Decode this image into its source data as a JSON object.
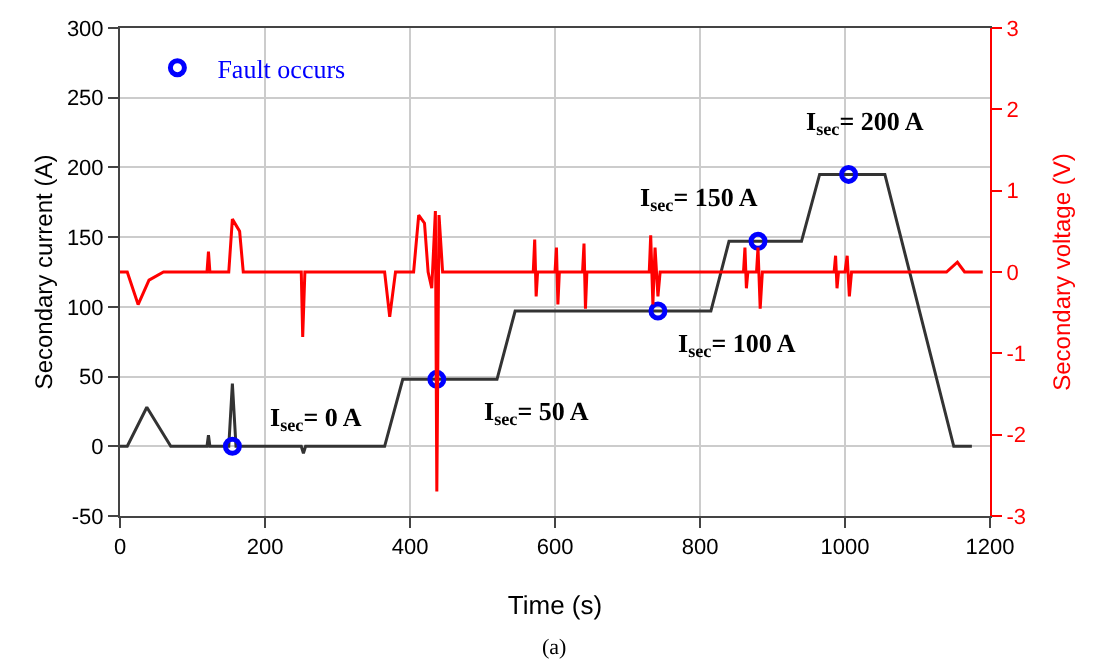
{
  "chart_data": {
    "type": "line",
    "xlabel": "Time (s)",
    "ylabel": "Secondary current (A)",
    "y2label": "Secondary voltage (V)",
    "xlim": [
      0,
      1200
    ],
    "xticks": [
      0,
      200,
      400,
      600,
      800,
      1000,
      1200
    ],
    "ylim": [
      -50,
      300
    ],
    "yticks": [
      -50,
      0,
      50,
      100,
      150,
      200,
      250,
      300
    ],
    "y2lim": [
      -3,
      3
    ],
    "y2ticks": [
      -3,
      -2,
      -1,
      0,
      1,
      2,
      3
    ],
    "grid": true,
    "legend": "top left",
    "line_style": "solid",
    "series": [
      {
        "color": "#333333",
        "x": [
          0,
          10,
          37,
          70,
          120,
          122,
          124,
          150,
          155,
          160,
          250,
          253,
          256,
          365,
          390,
          520,
          545,
          815,
          840,
          940,
          965,
          1055,
          1150,
          1175
        ],
        "values": [
          0,
          0,
          28,
          0,
          0,
          8,
          0,
          0,
          45,
          0,
          0,
          -5,
          0,
          0,
          48,
          48,
          97,
          97,
          147,
          147,
          195,
          195,
          0,
          0
        ]
      },
      {
        "axis": "y2",
        "color": "#ff0000",
        "x": [
          0,
          10,
          25,
          40,
          60,
          120,
          122,
          124,
          150,
          155,
          165,
          170,
          250,
          252,
          255,
          365,
          372,
          380,
          405,
          412,
          420,
          425,
          430,
          435,
          437,
          440,
          445,
          570,
          572,
          574,
          576,
          600,
          602,
          604,
          606,
          638,
          640,
          642,
          644,
          730,
          732,
          735,
          738,
          742,
          745,
          860,
          862,
          864,
          866,
          878,
          880,
          883,
          886,
          985,
          987,
          989,
          991,
          1000,
          1003,
          1006,
          1009,
          1140,
          1155,
          1165,
          1190
        ],
        "values": [
          0,
          0,
          -0.4,
          -0.1,
          0,
          0,
          0.25,
          0,
          0,
          0.65,
          0.5,
          0,
          0,
          -0.8,
          0,
          0,
          -0.55,
          0,
          0,
          0.7,
          0.6,
          0,
          -0.2,
          0.75,
          -2.7,
          0.7,
          0,
          0,
          0.4,
          -0.3,
          0,
          0,
          0.3,
          -0.4,
          0,
          0,
          0.35,
          -0.45,
          0,
          0,
          0.45,
          -0.4,
          0.3,
          -0.3,
          0,
          0,
          0.3,
          -0.2,
          0,
          0,
          0.3,
          -0.45,
          0,
          0,
          0.2,
          -0.2,
          0,
          0,
          0.2,
          -0.3,
          0,
          0,
          0.12,
          0,
          0
        ]
      },
      {
        "type": "scatter",
        "name": "Fault occurs",
        "color": "#0000ff",
        "marker": "circle",
        "x": [
          155,
          437,
          742,
          880,
          1005
        ],
        "values": [
          0,
          48,
          97,
          147,
          195
        ]
      }
    ],
    "annotations": [
      "I$_{sec}$= 0 A",
      "I$_{sec}$= 50 A",
      "I$_{sec}$= 100 A",
      "I$_{sec}$= 150 A",
      "I$_{sec}$= 200 A",
      "(a)"
    ]
  }
}
